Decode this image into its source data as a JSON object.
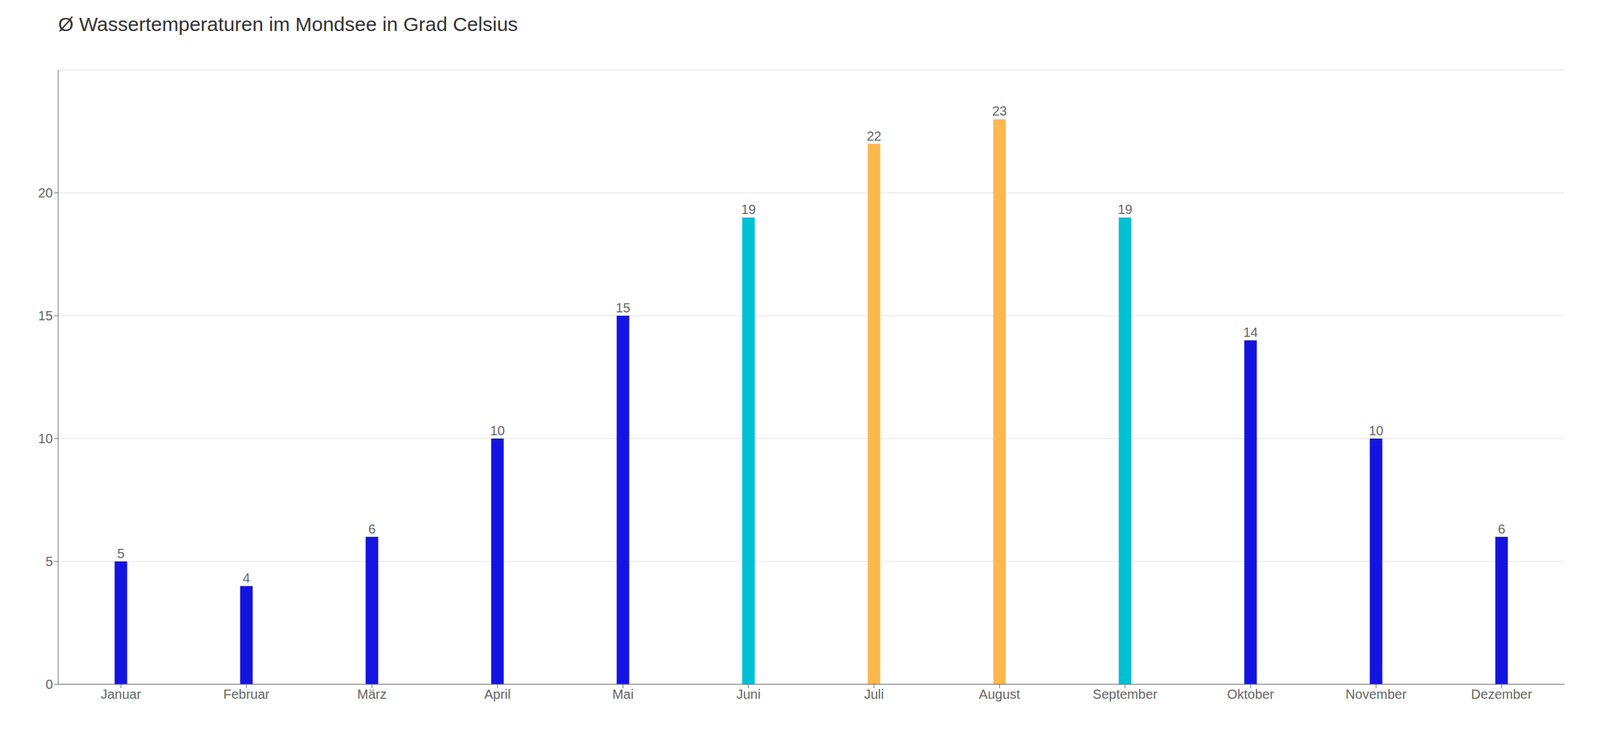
{
  "chart_data": {
    "type": "bar",
    "title": "Ø Wassertemperaturen im Mondsee in Grad Celsius",
    "categories": [
      "Januar",
      "Februar",
      "März",
      "April",
      "Mai",
      "Juni",
      "Juli",
      "August",
      "September",
      "Oktober",
      "November",
      "Dezember"
    ],
    "values": [
      5,
      4,
      6,
      10,
      15,
      19,
      22,
      23,
      19,
      14,
      10,
      6
    ],
    "colors": [
      "#1414e0",
      "#1414e0",
      "#1414e0",
      "#1414e0",
      "#1414e0",
      "#00c0d4",
      "#ffb84d",
      "#ffb84d",
      "#00c0d4",
      "#1414e0",
      "#1414e0",
      "#1414e0"
    ],
    "ylim": [
      0,
      25
    ],
    "yticks": [
      0,
      5,
      10,
      15,
      20
    ],
    "grid": true,
    "data_labels": true
  }
}
